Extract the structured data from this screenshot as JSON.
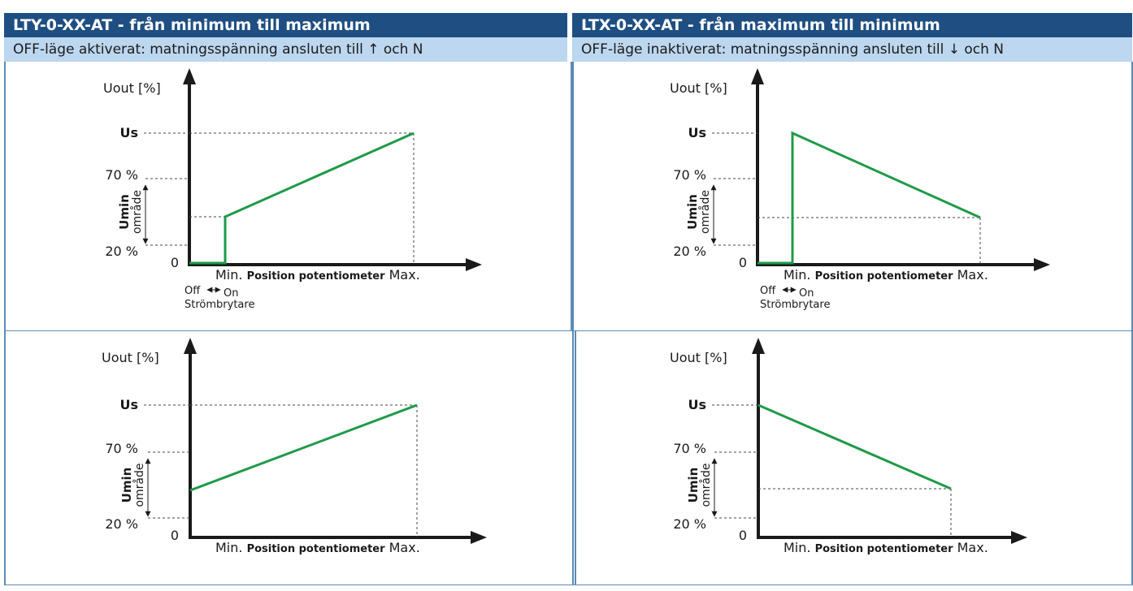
{
  "headers": {
    "left": {
      "title": "LTY-0-XX-AT - från minimum till maximum",
      "subtitle": "OFF-läge aktiverat: matningsspänning ansluten till ↑ och N"
    },
    "right": {
      "title": "LTX-0-XX-AT - från maximum till minimum",
      "subtitle": "OFF-läge inaktiverat: matningsspänning ansluten till ↓ och N"
    }
  },
  "labels": {
    "y_axis": "Uout [%]",
    "us": "Us",
    "p70": "70 %",
    "p20": "20 %",
    "zero": "0",
    "umin": "Umin",
    "omrade": "område",
    "x_min": "Min.",
    "x_axis": "Position potentiometer",
    "x_max": "Max.",
    "off": "Off",
    "on": "On",
    "switch": "Strömbrytare"
  },
  "colors": {
    "header_bg": "#1f4f82",
    "subheader_bg": "#bcd7ef",
    "line": "#1f9a48",
    "border": "#5c8ab5"
  },
  "chart_data": [
    {
      "type": "line",
      "direction": "increasing",
      "has_switch": true
    },
    {
      "type": "line",
      "direction": "decreasing",
      "has_switch": true
    },
    {
      "type": "line",
      "direction": "increasing",
      "has_switch": false
    },
    {
      "type": "line",
      "direction": "decreasing",
      "has_switch": false
    }
  ]
}
